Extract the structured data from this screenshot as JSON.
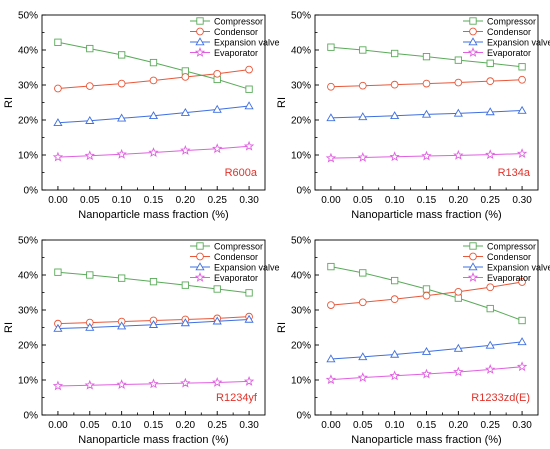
{
  "colors": {
    "compressor": "#5aaa5a",
    "condenser": "#e8583a",
    "expansion_valve": "#3f6fe0",
    "evaporator": "#e060e0",
    "refrigerant_label": "#e0322a",
    "axis": "#000000"
  },
  "icons": {
    "compressor": "square-marker",
    "condenser": "circle-marker",
    "expansion_valve": "triangle-marker",
    "evaporator": "star-marker"
  },
  "chart_data": [
    {
      "type": "line",
      "annotation": "R600a",
      "xlabel": "Nanoparticle mass fraction (%)",
      "ylabel": "RI",
      "x": [
        0.0,
        0.05,
        0.1,
        0.15,
        0.2,
        0.25,
        0.3
      ],
      "xticks": [
        "0.00",
        "0.05",
        "0.10",
        "0.15",
        "0.20",
        "0.25",
        "0.30"
      ],
      "yticks": [
        "0%",
        "10%",
        "20%",
        "30%",
        "40%",
        "50%"
      ],
      "ylim": [
        0,
        50
      ],
      "legend_position": "top-right",
      "series": [
        {
          "name": "Compressor",
          "key": "compressor",
          "values": [
            42.2,
            40.4,
            38.6,
            36.4,
            34.0,
            31.6,
            28.8
          ]
        },
        {
          "name": "Condensor",
          "key": "condenser",
          "values": [
            29.0,
            29.7,
            30.4,
            31.3,
            32.3,
            33.2,
            34.4
          ]
        },
        {
          "name": "Expansion valve",
          "key": "expansion_valve",
          "values": [
            19.2,
            19.8,
            20.5,
            21.2,
            22.1,
            23.0,
            24.0
          ]
        },
        {
          "name": "Evaporator",
          "key": "evaporator",
          "values": [
            9.4,
            9.8,
            10.2,
            10.7,
            11.3,
            11.8,
            12.5
          ]
        }
      ]
    },
    {
      "type": "line",
      "annotation": "R134a",
      "xlabel": "Nanoparticle mass fraction (%)",
      "ylabel": "RI",
      "x": [
        0.0,
        0.05,
        0.1,
        0.15,
        0.2,
        0.25,
        0.3
      ],
      "xticks": [
        "0.00",
        "0.05",
        "0.10",
        "0.15",
        "0.20",
        "0.25",
        "0.30"
      ],
      "yticks": [
        "0%",
        "10%",
        "20%",
        "30%",
        "40%",
        "50%"
      ],
      "ylim": [
        0,
        50
      ],
      "legend_position": "top-right",
      "series": [
        {
          "name": "Compressor",
          "key": "compressor",
          "values": [
            40.8,
            40.0,
            39.0,
            38.1,
            37.1,
            36.2,
            35.2
          ]
        },
        {
          "name": "Condensor",
          "key": "condenser",
          "values": [
            29.5,
            29.8,
            30.1,
            30.4,
            30.7,
            31.1,
            31.5
          ]
        },
        {
          "name": "Expansion valve",
          "key": "expansion_valve",
          "values": [
            20.6,
            20.9,
            21.2,
            21.6,
            21.9,
            22.3,
            22.7
          ]
        },
        {
          "name": "Evaporator",
          "key": "evaporator",
          "values": [
            9.1,
            9.3,
            9.5,
            9.7,
            9.9,
            10.1,
            10.4
          ]
        }
      ]
    },
    {
      "type": "line",
      "annotation": "R1234yf",
      "xlabel": "Nanoparticle mass fraction (%)",
      "ylabel": "RI",
      "x": [
        0.0,
        0.05,
        0.1,
        0.15,
        0.2,
        0.25,
        0.3
      ],
      "xticks": [
        "0.00",
        "0.05",
        "0.10",
        "0.15",
        "0.20",
        "0.25",
        "0.30"
      ],
      "yticks": [
        "0%",
        "10%",
        "20%",
        "30%",
        "40%",
        "50%"
      ],
      "ylim": [
        0,
        50
      ],
      "legend_position": "top-right",
      "series": [
        {
          "name": "Compressor",
          "key": "compressor",
          "values": [
            40.8,
            40.0,
            39.1,
            38.1,
            37.1,
            36.0,
            34.9
          ]
        },
        {
          "name": "Condensor",
          "key": "condenser",
          "values": [
            26.1,
            26.4,
            26.7,
            27.0,
            27.3,
            27.6,
            28.1
          ]
        },
        {
          "name": "Expansion valve",
          "key": "expansion_valve",
          "values": [
            24.7,
            25.0,
            25.4,
            25.8,
            26.3,
            26.8,
            27.3
          ]
        },
        {
          "name": "Evaporator",
          "key": "evaporator",
          "values": [
            8.3,
            8.5,
            8.7,
            8.9,
            9.1,
            9.3,
            9.6
          ]
        }
      ]
    },
    {
      "type": "line",
      "annotation": "R1233zd(E)",
      "xlabel": "Nanoparticle mass fraction (%)",
      "ylabel": "RI",
      "x": [
        0.0,
        0.05,
        0.1,
        0.15,
        0.2,
        0.25,
        0.3
      ],
      "xticks": [
        "0.00",
        "0.05",
        "0.10",
        "0.15",
        "0.20",
        "0.25",
        "0.30"
      ],
      "yticks": [
        "0%",
        "10%",
        "20%",
        "30%",
        "40%",
        "50%"
      ],
      "ylim": [
        0,
        50
      ],
      "legend_position": "top-right",
      "series": [
        {
          "name": "Compressor",
          "key": "compressor",
          "values": [
            42.4,
            40.6,
            38.4,
            36.0,
            33.4,
            30.4,
            27.0
          ]
        },
        {
          "name": "Condensor",
          "key": "condenser",
          "values": [
            31.4,
            32.2,
            33.1,
            34.1,
            35.2,
            36.5,
            38.0
          ]
        },
        {
          "name": "Expansion valve",
          "key": "expansion_valve",
          "values": [
            16.0,
            16.6,
            17.3,
            18.1,
            19.0,
            19.9,
            20.9
          ]
        },
        {
          "name": "Evaporator",
          "key": "evaporator",
          "values": [
            10.1,
            10.7,
            11.2,
            11.7,
            12.3,
            13.0,
            13.8
          ]
        }
      ]
    }
  ]
}
